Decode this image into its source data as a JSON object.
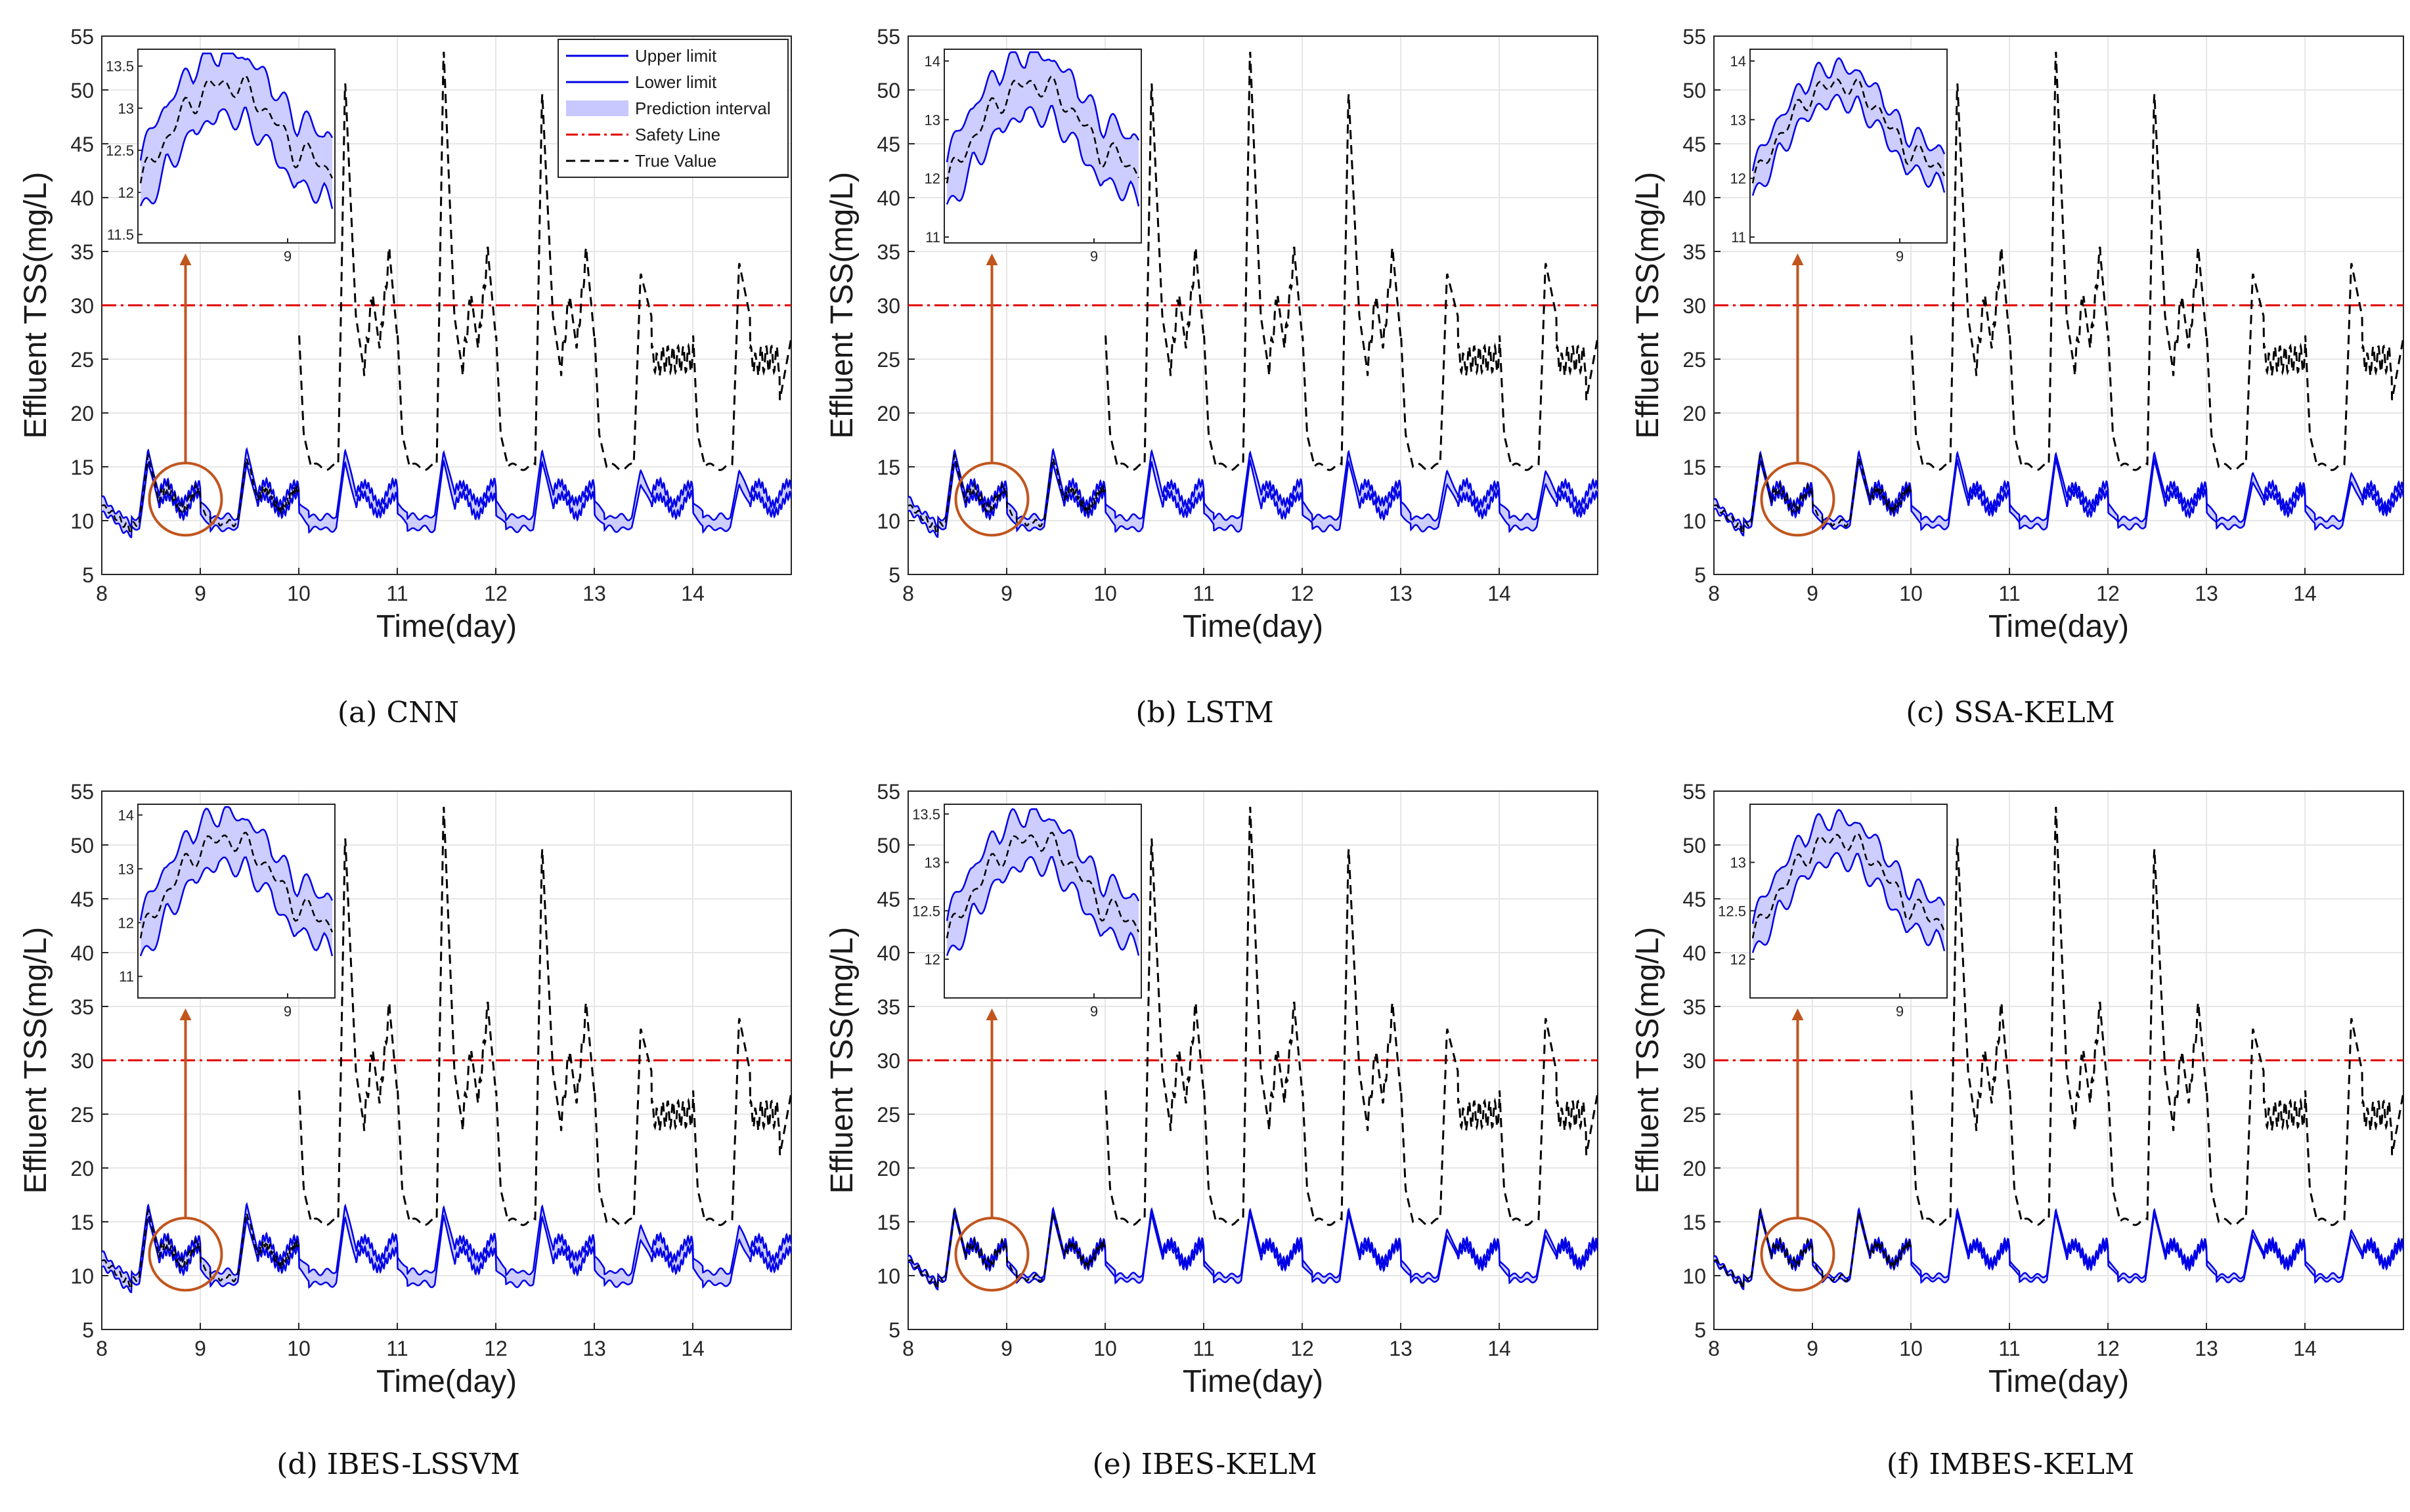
{
  "figure": {
    "legend": [
      {
        "label": "Upper limit",
        "style": "solid",
        "color": "#0000e6"
      },
      {
        "label": "Lower limit",
        "style": "solid",
        "color": "#0000e6"
      },
      {
        "label": "Prediction interval",
        "style": "patch",
        "color": "#c8c8ff"
      },
      {
        "label": "Safety Line",
        "style": "dashdot",
        "color": "#e00000"
      },
      {
        "label": "True Value",
        "style": "dashed",
        "color": "#000000"
      }
    ],
    "colors": {
      "bound": "#0000e6",
      "band": "#c8c8ff",
      "safety": "#e00000",
      "truth": "#000000",
      "annotation": "#c0561e",
      "grid": "#e6e6e6"
    }
  },
  "chart_data": [
    {
      "id": "a",
      "caption": "(a)  CNN",
      "type": "line",
      "xlabel": "Time(day)",
      "ylabel": "Effluent TSS(mg/L)",
      "xlim": [
        8,
        15
      ],
      "ylim": [
        5,
        55
      ],
      "xticks": [
        "8",
        "9",
        "10",
        "11",
        "12",
        "13",
        "14"
      ],
      "yticks": [
        "5",
        "10",
        "15",
        "20",
        "25",
        "30",
        "35",
        "40",
        "45",
        "50",
        "55"
      ],
      "safety_line": 30,
      "band_offset": 0.7,
      "show_legend": true,
      "inset": {
        "ylim": [
          11.4,
          13.7
        ],
        "yticks": [
          "11.5",
          "12",
          "12.5",
          "13",
          "13.5"
        ],
        "xtick": "9",
        "band_width": 0.45
      }
    },
    {
      "id": "b",
      "caption": "(b)  LSTM",
      "type": "line",
      "xlabel": "Time(day)",
      "ylabel": "Effluent TSS(mg/L)",
      "xlim": [
        8,
        15
      ],
      "ylim": [
        5,
        55
      ],
      "xticks": [
        "8",
        "9",
        "10",
        "11",
        "12",
        "13",
        "14"
      ],
      "yticks": [
        "5",
        "10",
        "15",
        "20",
        "25",
        "30",
        "35",
        "40",
        "45",
        "50",
        "55"
      ],
      "safety_line": 30,
      "band_offset": 0.65,
      "show_legend": false,
      "inset": {
        "ylim": [
          10.9,
          14.2
        ],
        "yticks": [
          "11",
          "12",
          "13",
          "14"
        ],
        "xtick": "9",
        "band_width": 0.6
      }
    },
    {
      "id": "c",
      "caption": "(c)  SSA-KELM",
      "type": "line",
      "xlabel": "Time(day)",
      "ylabel": "Effluent TSS(mg/L)",
      "xlim": [
        8,
        15
      ],
      "ylim": [
        5,
        55
      ],
      "xticks": [
        "8",
        "9",
        "10",
        "11",
        "12",
        "13",
        "14"
      ],
      "yticks": [
        "5",
        "10",
        "15",
        "20",
        "25",
        "30",
        "35",
        "40",
        "45",
        "50",
        "55"
      ],
      "safety_line": 30,
      "band_offset": 0.45,
      "show_legend": false,
      "inset": {
        "ylim": [
          10.9,
          14.2
        ],
        "yticks": [
          "11",
          "12",
          "13",
          "14"
        ],
        "xtick": "9",
        "band_width": 0.35
      }
    },
    {
      "id": "d",
      "caption": "(d)  IBES-LSSVM",
      "type": "line",
      "xlabel": "Time(day)",
      "ylabel": "Effluent TSS(mg/L)",
      "xlim": [
        8,
        15
      ],
      "ylim": [
        5,
        55
      ],
      "xticks": [
        "8",
        "9",
        "10",
        "11",
        "12",
        "13",
        "14"
      ],
      "yticks": [
        "5",
        "10",
        "15",
        "20",
        "25",
        "30",
        "35",
        "40",
        "45",
        "50",
        "55"
      ],
      "safety_line": 30,
      "band_offset": 0.7,
      "show_legend": false,
      "inset": {
        "ylim": [
          10.6,
          14.2
        ],
        "yticks": [
          "11",
          "12",
          "13",
          "14"
        ],
        "xtick": "9",
        "band_width": 0.55
      }
    },
    {
      "id": "e",
      "caption": "(e)  IBES-KELM",
      "type": "line",
      "xlabel": "Time(day)",
      "ylabel": "Effluent TSS(mg/L)",
      "xlim": [
        8,
        15
      ],
      "ylim": [
        5,
        55
      ],
      "xticks": [
        "8",
        "9",
        "10",
        "11",
        "12",
        "13",
        "14"
      ],
      "yticks": [
        "5",
        "10",
        "15",
        "20",
        "25",
        "30",
        "35",
        "40",
        "45",
        "50",
        "55"
      ],
      "safety_line": 30,
      "band_offset": 0.3,
      "show_legend": false,
      "inset": {
        "ylim": [
          11.6,
          13.6
        ],
        "yticks": [
          "12",
          "12.5",
          "13",
          "13.5"
        ],
        "xtick": "9",
        "band_width": 0.3
      }
    },
    {
      "id": "f",
      "caption": "(f)  IMBES-KELM",
      "type": "line",
      "xlabel": "Time(day)",
      "ylabel": "Effluent TSS(mg/L)",
      "xlim": [
        8,
        15
      ],
      "ylim": [
        5,
        55
      ],
      "xticks": [
        "8",
        "9",
        "10",
        "11",
        "12",
        "13",
        "14"
      ],
      "yticks": [
        "5",
        "10",
        "15",
        "20",
        "25",
        "30",
        "35",
        "40",
        "45",
        "50",
        "55"
      ],
      "safety_line": 30,
      "band_offset": 0.25,
      "show_legend": false,
      "inset": {
        "ylim": [
          11.6,
          13.6
        ],
        "yticks": [
          "12",
          "12.5",
          "13"
        ],
        "xtick": "9",
        "band_width": 0.25
      }
    }
  ],
  "series_profile": {
    "comment": "Daily shape of effluent TSS (true value); used for all six panels",
    "true_value_peaks_by_day": {
      "10": 51,
      "11": 54,
      "12": 50,
      "13": 33,
      "14": 34
    },
    "true_value_minima": 14,
    "prediction_day_peaks": {
      "8": 16,
      "9": 16,
      "10": 16,
      "11": 16,
      "12": 16,
      "13": 14,
      "14": 14
    },
    "prediction_minima": 9.5
  }
}
